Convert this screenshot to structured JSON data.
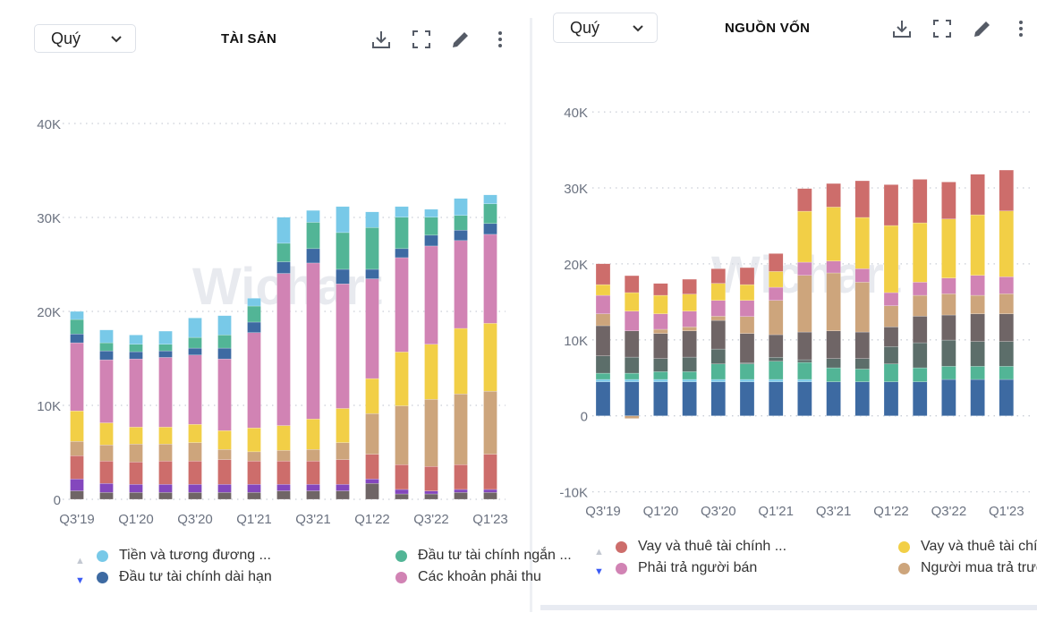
{
  "colors": {
    "cyan": "#78c9e8",
    "green": "#52b596",
    "blue": "#3d6aa2",
    "pink": "#d183b4",
    "yellow": "#f2cf46",
    "tan": "#cda57c",
    "red": "#cd6d6b",
    "purple": "#8447bd",
    "gray": "#6f6566",
    "slate": "#5c6e6a",
    "axis_text": "#6b7280",
    "grid": "#c9ced6"
  },
  "watermark": "Wichart",
  "icons": [
    "download-icon",
    "fullscreen-icon",
    "edit-icon",
    "more-vertical-icon"
  ],
  "chart_data": [
    {
      "type": "bar",
      "stacked": true,
      "title": "TÀI SẢN",
      "period_select": "Quý",
      "value_unit": "K",
      "ylim": [
        0,
        40
      ],
      "y_ticks": [
        {
          "v": 0,
          "label": "0"
        },
        {
          "v": 10,
          "label": "10K"
        },
        {
          "v": 20,
          "label": "20K"
        },
        {
          "v": 30,
          "label": "30K"
        },
        {
          "v": 40,
          "label": "40K"
        }
      ],
      "grid": true,
      "legend_placement": "bottom",
      "categories": [
        "Q3'19",
        "Q4'19",
        "Q1'20",
        "Q2'20",
        "Q3'20",
        "Q4'20",
        "Q1'21",
        "Q2'21",
        "Q3'21",
        "Q4'21",
        "Q1'22",
        "Q2'22",
        "Q3'22",
        "Q4'22",
        "Q1'23"
      ],
      "x_tick_labels": [
        "Q3'19",
        "Q1'20",
        "Q3'20",
        "Q1'21",
        "Q3'21",
        "Q1'22",
        "Q3'22",
        "Q1'23"
      ],
      "series": [
        {
          "color": "gray",
          "values": [
            0.9,
            0.73,
            0.73,
            0.73,
            0.73,
            0.73,
            0.73,
            0.9,
            0.9,
            0.9,
            1.69,
            0.57,
            0.57,
            0.73,
            0.73
          ]
        },
        {
          "color": "purple",
          "values": [
            1.26,
            0.96,
            0.86,
            0.86,
            0.86,
            0.86,
            0.86,
            0.69,
            0.69,
            0.69,
            0.47,
            0.48,
            0.32,
            0.32,
            0.32
          ]
        },
        {
          "color": "red",
          "values": [
            2.48,
            2.38,
            2.38,
            2.48,
            2.48,
            2.64,
            2.48,
            2.48,
            2.48,
            2.64,
            2.64,
            2.64,
            2.61,
            2.64,
            3.75
          ]
        },
        {
          "color": "tan",
          "values": [
            1.53,
            1.72,
            1.91,
            1.81,
            1.97,
            1.08,
            0.99,
            1.14,
            1.24,
            1.81,
            4.33,
            6.26,
            7.15,
            7.53,
            6.71
          ]
        },
        {
          "color": "yellow",
          "values": [
            3.24,
            2.35,
            1.81,
            1.81,
            1.94,
            2.0,
            2.54,
            2.64,
            3.24,
            3.63,
            3.72,
            5.73,
            5.85,
            6.97,
            7.22
          ]
        },
        {
          "name": "Các khoản phải thu",
          "color": "pink",
          "values": [
            7.25,
            6.71,
            7.25,
            7.41,
            7.38,
            7.63,
            10.14,
            16.19,
            16.6,
            13.26,
            10.62,
            10.04,
            10.46,
            9.35,
            9.47
          ]
        },
        {
          "name": "Đầu tư tài chính dài hạn",
          "color": "blue",
          "values": [
            0.94,
            0.95,
            0.77,
            0.7,
            0.73,
            1.15,
            1.12,
            1.24,
            1.53,
            1.55,
            1.01,
            0.96,
            1.15,
            1.11,
            1.15
          ]
        },
        {
          "name": "Đầu tư tài chính ngắn ...",
          "color": "green",
          "values": [
            1.54,
            0.86,
            0.79,
            0.7,
            1.14,
            1.4,
            1.71,
            1.97,
            2.8,
            3.91,
            4.45,
            3.34,
            1.91,
            1.56,
            2.1
          ]
        },
        {
          "name": "Tiền và tương đương ...",
          "color": "cyan",
          "values": [
            0.86,
            1.37,
            0.99,
            1.4,
            2.07,
            2.06,
            0.83,
            2.77,
            1.27,
            2.77,
            1.66,
            1.14,
            0.85,
            1.81,
            0.95
          ]
        }
      ],
      "legend": [
        {
          "label": "Tiền và tương đương ...",
          "color": "cyan"
        },
        {
          "label": "Đầu tư tài chính ngắn ...",
          "color": "green"
        },
        {
          "label": "Đầu tư tài chính dài hạn",
          "color": "blue"
        },
        {
          "label": "Các khoản phải thu",
          "color": "pink"
        }
      ]
    },
    {
      "type": "bar",
      "stacked": true,
      "title": "NGUỒN VỐN",
      "period_select": "Quý",
      "value_unit": "K",
      "ylim": [
        -10,
        40
      ],
      "y_ticks": [
        {
          "v": -10,
          "label": "-10K"
        },
        {
          "v": 0,
          "label": "0"
        },
        {
          "v": 10,
          "label": "10K"
        },
        {
          "v": 20,
          "label": "20K"
        },
        {
          "v": 30,
          "label": "30K"
        },
        {
          "v": 40,
          "label": "40K"
        }
      ],
      "grid": true,
      "legend_placement": "bottom",
      "categories": [
        "Q3'19",
        "Q4'19",
        "Q1'20",
        "Q2'20",
        "Q3'20",
        "Q4'20",
        "Q1'21",
        "Q2'21",
        "Q3'21",
        "Q4'21",
        "Q1'22",
        "Q2'22",
        "Q3'22",
        "Q4'22",
        "Q1'23"
      ],
      "x_tick_labels": [
        "Q3'19",
        "Q1'20",
        "Q3'20",
        "Q1'21",
        "Q3'21",
        "Q1'22",
        "Q3'22",
        "Q1'23"
      ],
      "series": [
        {
          "color": "blue",
          "values": [
            4.48,
            4.48,
            4.48,
            4.48,
            4.48,
            4.48,
            4.48,
            4.48,
            4.48,
            4.48,
            4.48,
            4.48,
            4.79,
            4.79,
            4.79
          ]
        },
        {
          "color": "cyan",
          "values": [
            0.31,
            0.31,
            0.31,
            0.31,
            0.31,
            0.31,
            0.31,
            0.31,
            0,
            0,
            0,
            0,
            0,
            0,
            0
          ]
        },
        {
          "color": "green",
          "values": [
            0.82,
            0.82,
            1.02,
            1.02,
            2.04,
            2.04,
            2.39,
            2.24,
            1.84,
            1.68,
            2.35,
            1.84,
            1.73,
            1.73,
            1.73
          ]
        },
        {
          "color": "slate",
          "values": [
            2.28,
            2.12,
            1.73,
            1.92,
            1.96,
            0.16,
            0.52,
            0.35,
            1.22,
            1.38,
            2.28,
            3.3,
            3.45,
            3.26,
            3.26
          ]
        },
        {
          "color": "gray",
          "values": [
            3.97,
            3.46,
            3.3,
            3.46,
            3.77,
            3.85,
            2.98,
            3.65,
            3.65,
            3.49,
            2.59,
            3.49,
            3.3,
            3.65,
            3.65
          ]
        },
        {
          "name": "Người mua trả trước",
          "color": "tan",
          "values": [
            1.57,
            -0.35,
            0.55,
            0.51,
            0.55,
            2.23,
            4.51,
            7.46,
            7.62,
            6.56,
            2.79,
            2.75,
            2.79,
            2.43,
            2.63
          ]
        },
        {
          "name": "Phải trả người bán",
          "color": "pink",
          "values": [
            2.43,
            2.59,
            2.04,
            2.08,
            2.08,
            2.12,
            1.73,
            1.73,
            1.57,
            1.77,
            1.73,
            1.73,
            2.08,
            2.63,
            2.24
          ]
        },
        {
          "name": "Vay và thuê tài chính ...",
          "color": "yellow",
          "values": [
            1.41,
            2.44,
            2.43,
            2.24,
            2.24,
            2.08,
            2.08,
            6.71,
            7.1,
            6.75,
            8.83,
            7.81,
            7.77,
            7.97,
            8.67
          ]
        },
        {
          "name": "Vay và thuê tài chính ...",
          "color": "red",
          "values": [
            2.75,
            2.23,
            1.57,
            1.96,
            1.93,
            2.24,
            2.36,
            2.99,
            3.1,
            4.83,
            5.38,
            5.73,
            4.87,
            5.34,
            5.38
          ]
        }
      ],
      "legend": [
        {
          "label": "Vay và thuê tài chính ...",
          "color": "red"
        },
        {
          "label": "Vay và thuê tài chính ...",
          "color": "yellow"
        },
        {
          "label": "Phải trả người bán",
          "color": "pink"
        },
        {
          "label": "Người mua trả trước",
          "color": "tan"
        }
      ]
    }
  ]
}
